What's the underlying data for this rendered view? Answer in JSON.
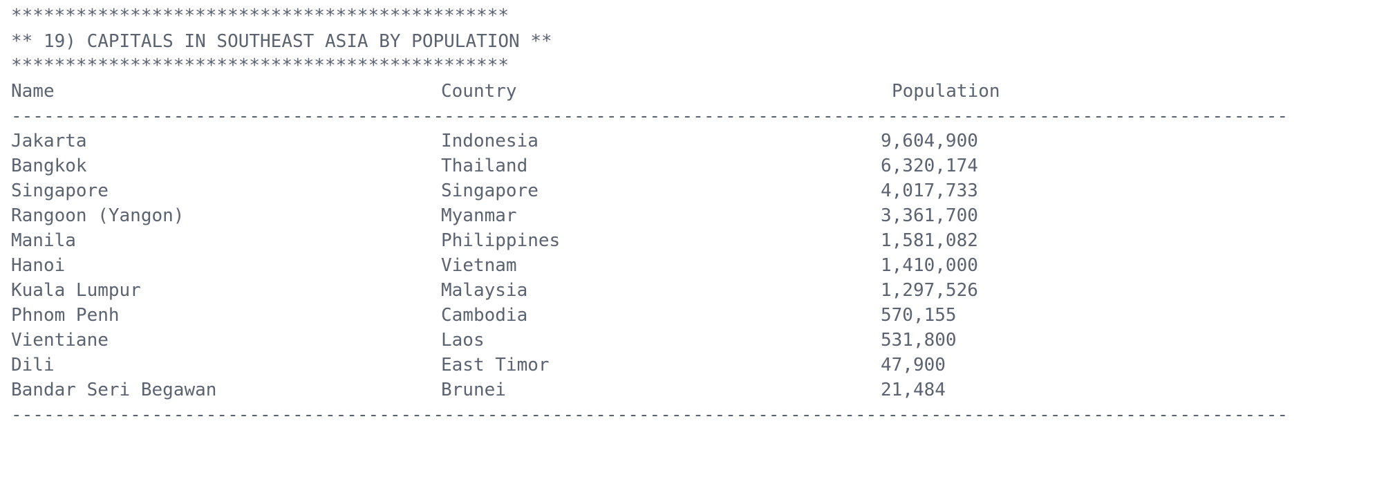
{
  "banner": {
    "stars_top": "**********************************************",
    "title": "** 19) CAPITALS IN SOUTHEAST ASIA BY POPULATION **",
    "stars_bottom": "**********************************************"
  },
  "table": {
    "headers": {
      "name": "Name",
      "country": "Country",
      "population": "Population"
    },
    "separator": "----------------------------------------------------------------------------------------------------------------------",
    "rows": [
      {
        "name": "Jakarta",
        "country": "Indonesia",
        "population": "9,604,900"
      },
      {
        "name": "Bangkok",
        "country": "Thailand",
        "population": "6,320,174"
      },
      {
        "name": "Singapore",
        "country": "Singapore",
        "population": "4,017,733"
      },
      {
        "name": "Rangoon (Yangon)",
        "country": "Myanmar",
        "population": "3,361,700"
      },
      {
        "name": "Manila",
        "country": "Philippines",
        "population": "1,581,082"
      },
      {
        "name": "Hanoi",
        "country": "Vietnam",
        "population": "1,410,000"
      },
      {
        "name": "Kuala Lumpur",
        "country": "Malaysia",
        "population": "1,297,526"
      },
      {
        "name": "Phnom Penh",
        "country": "Cambodia",
        "population": "570,155"
      },
      {
        "name": "Vientiane",
        "country": "Laos",
        "population": "531,800"
      },
      {
        "name": "Dili",
        "country": "East Timor",
        "population": "47,900"
      },
      {
        "name": "Bandar Seri Begawan",
        "country": "Brunei",
        "population": "21,484"
      }
    ]
  }
}
